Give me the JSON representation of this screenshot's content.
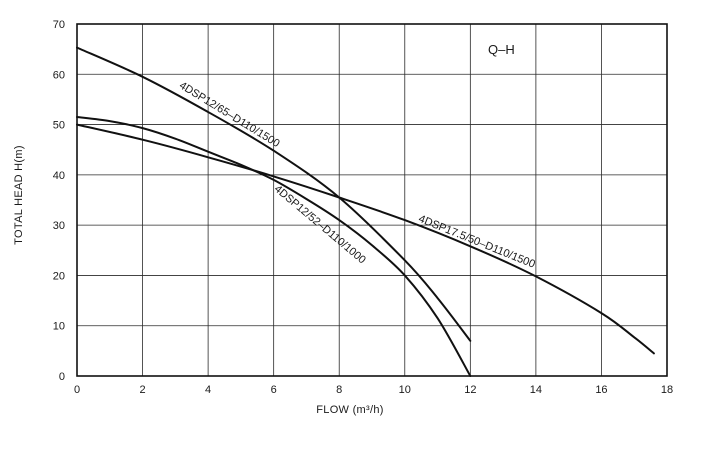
{
  "chart_data": {
    "type": "line",
    "panel_label": "Q–H",
    "xlabel": "FLOW (m³/h)",
    "ylabel": "TOTAL HEAD  H(m)",
    "xlim": [
      0,
      18
    ],
    "ylim": [
      0,
      70
    ],
    "x_ticks": [
      "0",
      "2",
      "4",
      "6",
      "8",
      "10",
      "12",
      "14",
      "16",
      "18"
    ],
    "y_ticks": [
      "0",
      "10",
      "20",
      "30",
      "40",
      "50",
      "60",
      "70"
    ],
    "grid": true,
    "series": [
      {
        "name": "4DSP12/65–D110/1500",
        "x": [
          0,
          2,
          4,
          6,
          8,
          10,
          11,
          12
        ],
        "y": [
          65.3,
          59.5,
          52.5,
          44.8,
          35.5,
          23.0,
          15.5,
          7.0
        ]
      },
      {
        "name": "4DSP12/52–D110/1000",
        "x": [
          0,
          1,
          2,
          3,
          4,
          5,
          6,
          7,
          8,
          9,
          10,
          11,
          12
        ],
        "y": [
          51.5,
          50.7,
          49.3,
          47.2,
          44.6,
          42.0,
          39.0,
          35.2,
          31.0,
          26.0,
          20.0,
          11.5,
          0
        ]
      },
      {
        "name": "4DSP17.5/50–D110/1500",
        "x": [
          0,
          2,
          4,
          6,
          8,
          10,
          12,
          14,
          16,
          17,
          17.6
        ],
        "y": [
          50.0,
          47.0,
          43.5,
          39.7,
          35.5,
          31.0,
          25.8,
          19.8,
          12.5,
          7.7,
          4.5
        ]
      }
    ]
  }
}
